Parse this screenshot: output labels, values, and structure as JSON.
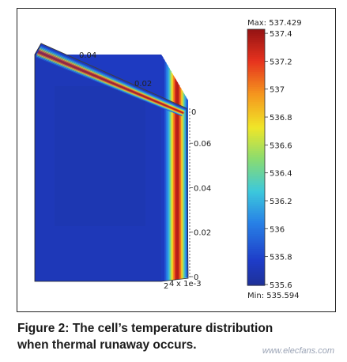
{
  "chart_data": {
    "type": "heatmap",
    "description_units": "temperature",
    "colorbar": {
      "max_label": "Max: 537.429",
      "min_label": "Min: 535.594",
      "max": 537.429,
      "min": 535.594,
      "ticks": [
        "537.4",
        "537.2",
        "537",
        "536.8",
        "536.6",
        "536.4",
        "536.2",
        "536",
        "535.8",
        "535.6"
      ],
      "tick_values": [
        537.4,
        537.2,
        537.0,
        536.8,
        536.6,
        536.4,
        536.2,
        536.0,
        535.8,
        535.6
      ]
    },
    "axes": {
      "depth_ticks": [
        "0.04",
        "0.02",
        "0"
      ],
      "height_ticks": [
        "0.06",
        "0.04",
        "0.02",
        "0"
      ],
      "thickness_ticks": [
        "2",
        "4",
        "x 1e-3"
      ]
    },
    "stripe_temps": [
      535.75,
      535.75,
      535.9,
      536.05,
      536.2,
      536.45,
      536.75,
      537.0,
      537.25,
      537.35,
      537.3,
      537.05,
      536.8,
      536.45,
      536.15,
      535.9
    ]
  },
  "caption": {
    "line1": "Figure 2: The cell’s temperature distribution",
    "line2": "when thermal runaway occurs."
  },
  "watermark": "www.elecfans.com"
}
